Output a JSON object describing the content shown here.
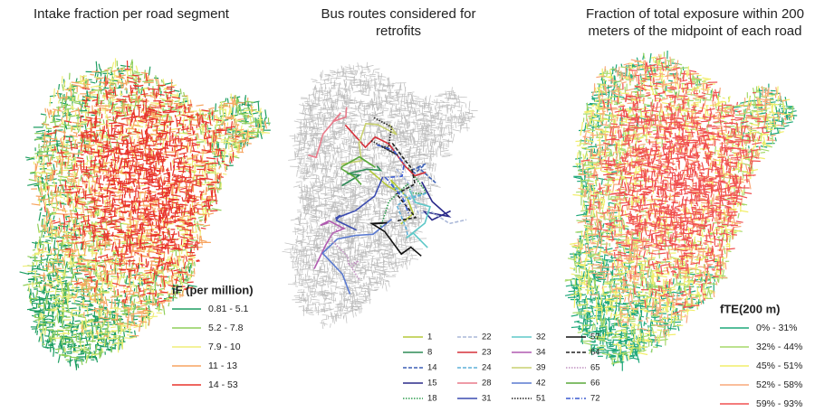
{
  "panels": [
    {
      "title": "Intake fraction per road segment",
      "legend": {
        "title": "iF (per million)",
        "items": [
          {
            "label": "0.81 - 5.1",
            "color": "#1e9e62"
          },
          {
            "label": "5.2 - 7.8",
            "color": "#8fcf5a"
          },
          {
            "label": "7.9 - 10",
            "color": "#f0ee78"
          },
          {
            "label": "11 - 13",
            "color": "#f7a460"
          },
          {
            "label": "14 - 53",
            "color": "#e8342c"
          }
        ]
      }
    },
    {
      "title": "Bus routes considered for retrofits",
      "legend": {
        "items": [
          {
            "label": "1",
            "color": "#b5c93a",
            "style": "solid"
          },
          {
            "label": "8",
            "color": "#2e8b57",
            "style": "solid"
          },
          {
            "label": "14",
            "color": "#3b5fb5",
            "style": "dashed"
          },
          {
            "label": "15",
            "color": "#2a2a8a",
            "style": "solid"
          },
          {
            "label": "18",
            "color": "#2e9e4e",
            "style": "dotted"
          },
          {
            "label": "22",
            "color": "#aab8d8",
            "style": "dashed"
          },
          {
            "label": "23",
            "color": "#d6303a",
            "style": "solid"
          },
          {
            "label": "24",
            "color": "#5fb0d8",
            "style": "dashed"
          },
          {
            "label": "28",
            "color": "#e87a8a",
            "style": "solid"
          },
          {
            "label": "31",
            "color": "#3a4bb0",
            "style": "solid"
          },
          {
            "label": "32",
            "color": "#5fc8c8",
            "style": "solid"
          },
          {
            "label": "34",
            "color": "#b05ab0",
            "style": "solid"
          },
          {
            "label": "39",
            "color": "#c8d070",
            "style": "solid"
          },
          {
            "label": "42",
            "color": "#5a7ad0",
            "style": "solid"
          },
          {
            "label": "51",
            "color": "#222222",
            "style": "dotted"
          },
          {
            "label": "57",
            "color": "#111111",
            "style": "solid"
          },
          {
            "label": "64",
            "color": "#222222",
            "style": "dashed"
          },
          {
            "label": "65",
            "color": "#c090c0",
            "style": "dotted"
          },
          {
            "label": "66",
            "color": "#5aa83a",
            "style": "solid"
          },
          {
            "label": "72",
            "color": "#3a5ad0",
            "style": "dashdot"
          }
        ]
      }
    },
    {
      "title": "Fraction of total exposure within 200 meters of the midpoint of each road",
      "legend": {
        "title": "fTE(200 m)",
        "items": [
          {
            "label": "0% - 31%",
            "color": "#1fa87a"
          },
          {
            "label": "32% - 44%",
            "color": "#a6d96a"
          },
          {
            "label": "45% - 51%",
            "color": "#f2ee6a"
          },
          {
            "label": "52% - 58%",
            "color": "#f9a87a"
          },
          {
            "label": "59% - 93%",
            "color": "#f05050"
          }
        ]
      }
    }
  ]
}
